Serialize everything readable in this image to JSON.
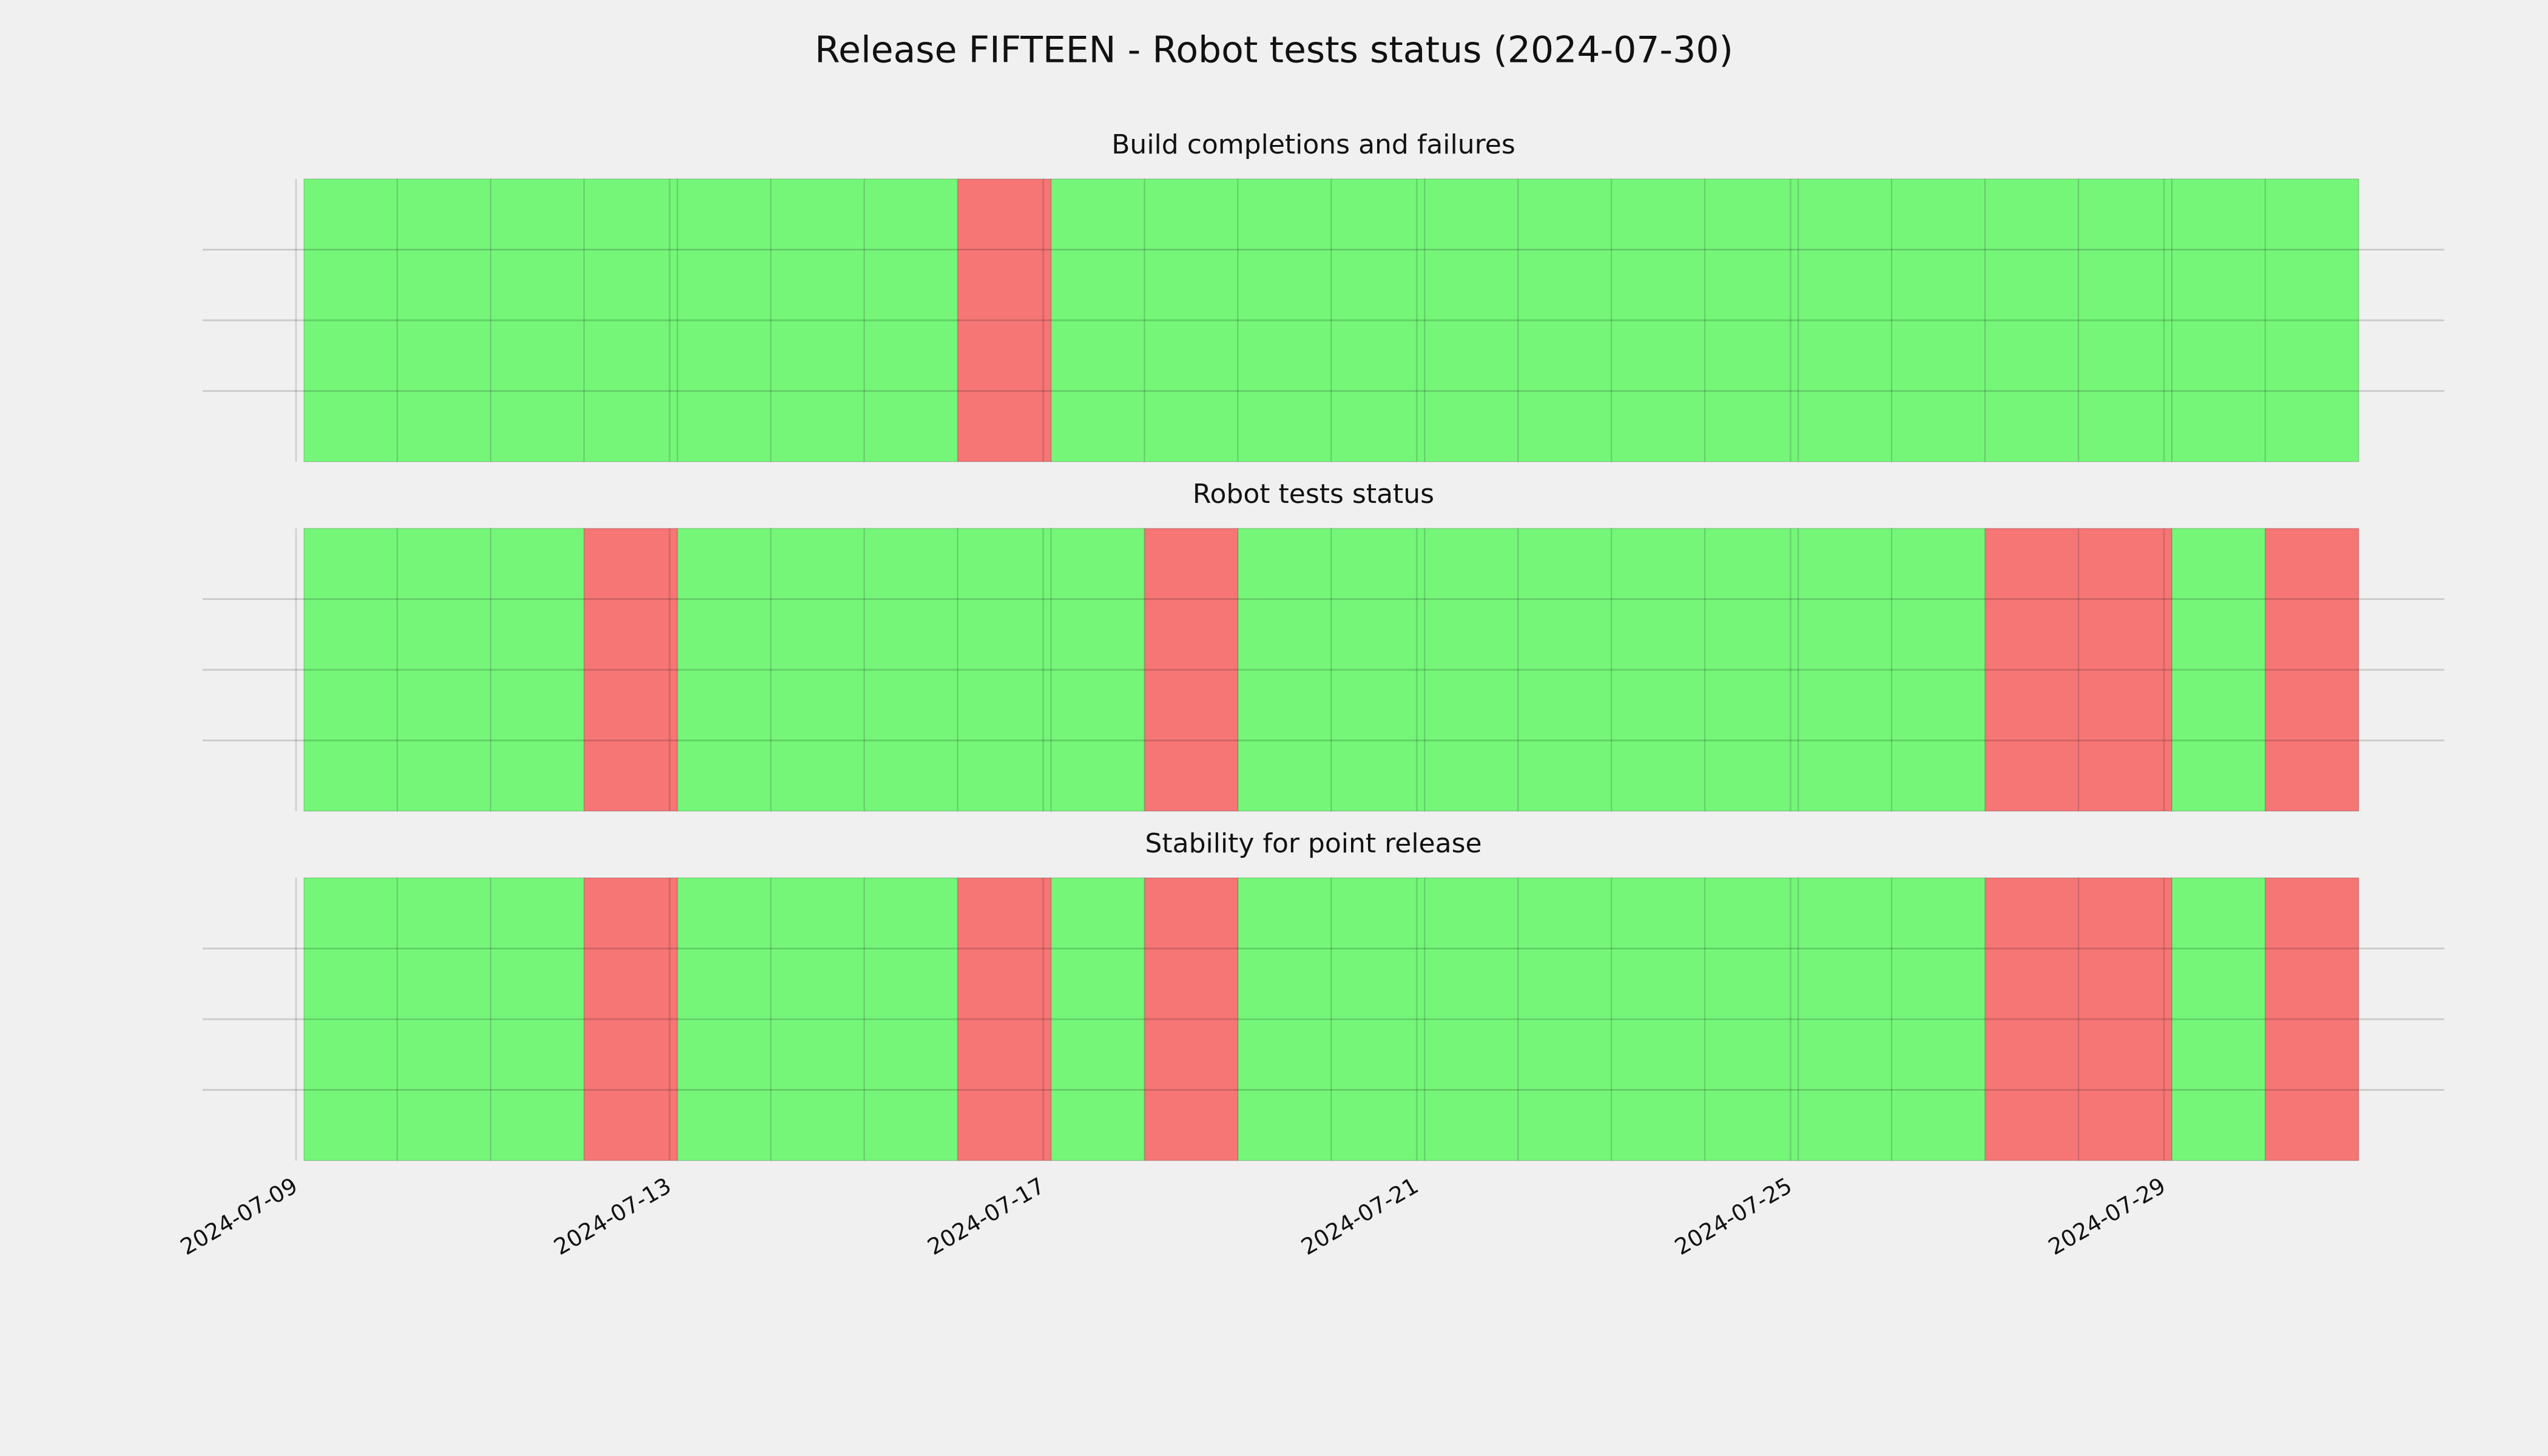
{
  "title": "Release FIFTEEN - Robot tests status (2024-07-30)",
  "chart_data": [
    {
      "type": "timeline",
      "title": "Build completions and failures",
      "x": [
        "2024-07-09",
        "2024-07-10",
        "2024-07-11",
        "2024-07-12",
        "2024-07-13",
        "2024-07-14",
        "2024-07-15",
        "2024-07-16",
        "2024-07-17",
        "2024-07-18",
        "2024-07-19",
        "2024-07-20",
        "2024-07-21",
        "2024-07-22",
        "2024-07-23",
        "2024-07-24",
        "2024-07-25",
        "2024-07-26",
        "2024-07-27",
        "2024-07-28",
        "2024-07-29",
        "2024-07-30"
      ],
      "values": [
        1,
        1,
        1,
        1,
        1,
        1,
        1,
        0,
        1,
        1,
        1,
        1,
        1,
        1,
        1,
        1,
        1,
        1,
        1,
        1,
        1,
        1
      ],
      "pass_color": "#75f679",
      "fail_color": "#f67676",
      "xlim": [
        "2024-07-08",
        "2024-08-01"
      ],
      "xticks": [
        "2024-07-09",
        "2024-07-13",
        "2024-07-17",
        "2024-07-21",
        "2024-07-25",
        "2024-07-29"
      ],
      "ylim": [
        0,
        1
      ],
      "yticks": [
        0.25,
        0.5,
        0.75
      ],
      "grid": true
    },
    {
      "type": "timeline",
      "title": "Robot tests status",
      "x": [
        "2024-07-09",
        "2024-07-10",
        "2024-07-11",
        "2024-07-12",
        "2024-07-13",
        "2024-07-14",
        "2024-07-15",
        "2024-07-16",
        "2024-07-17",
        "2024-07-18",
        "2024-07-19",
        "2024-07-20",
        "2024-07-21",
        "2024-07-22",
        "2024-07-23",
        "2024-07-24",
        "2024-07-25",
        "2024-07-26",
        "2024-07-27",
        "2024-07-28",
        "2024-07-29",
        "2024-07-30"
      ],
      "values": [
        1,
        1,
        1,
        0,
        1,
        1,
        1,
        1,
        1,
        0,
        1,
        1,
        1,
        1,
        1,
        1,
        1,
        1,
        0,
        0,
        1,
        0
      ],
      "pass_color": "#75f679",
      "fail_color": "#f67676",
      "xlim": [
        "2024-07-08",
        "2024-08-01"
      ],
      "xticks": [
        "2024-07-09",
        "2024-07-13",
        "2024-07-17",
        "2024-07-21",
        "2024-07-25",
        "2024-07-29"
      ],
      "ylim": [
        0,
        1
      ],
      "yticks": [
        0.25,
        0.5,
        0.75
      ],
      "grid": true
    },
    {
      "type": "timeline",
      "title": "Stability for point release",
      "x": [
        "2024-07-09",
        "2024-07-10",
        "2024-07-11",
        "2024-07-12",
        "2024-07-13",
        "2024-07-14",
        "2024-07-15",
        "2024-07-16",
        "2024-07-17",
        "2024-07-18",
        "2024-07-19",
        "2024-07-20",
        "2024-07-21",
        "2024-07-22",
        "2024-07-23",
        "2024-07-24",
        "2024-07-25",
        "2024-07-26",
        "2024-07-27",
        "2024-07-28",
        "2024-07-29",
        "2024-07-30"
      ],
      "values": [
        1,
        1,
        1,
        0,
        1,
        1,
        1,
        0,
        1,
        0,
        1,
        1,
        1,
        1,
        1,
        1,
        1,
        1,
        0,
        0,
        1,
        0
      ],
      "pass_color": "#75f679",
      "fail_color": "#f67676",
      "xlim": [
        "2024-07-08",
        "2024-08-01"
      ],
      "xticks": [
        "2024-07-09",
        "2024-07-13",
        "2024-07-17",
        "2024-07-21",
        "2024-07-25",
        "2024-07-29"
      ],
      "ylim": [
        0,
        1
      ],
      "yticks": [
        0.25,
        0.5,
        0.75
      ],
      "grid": true
    }
  ]
}
